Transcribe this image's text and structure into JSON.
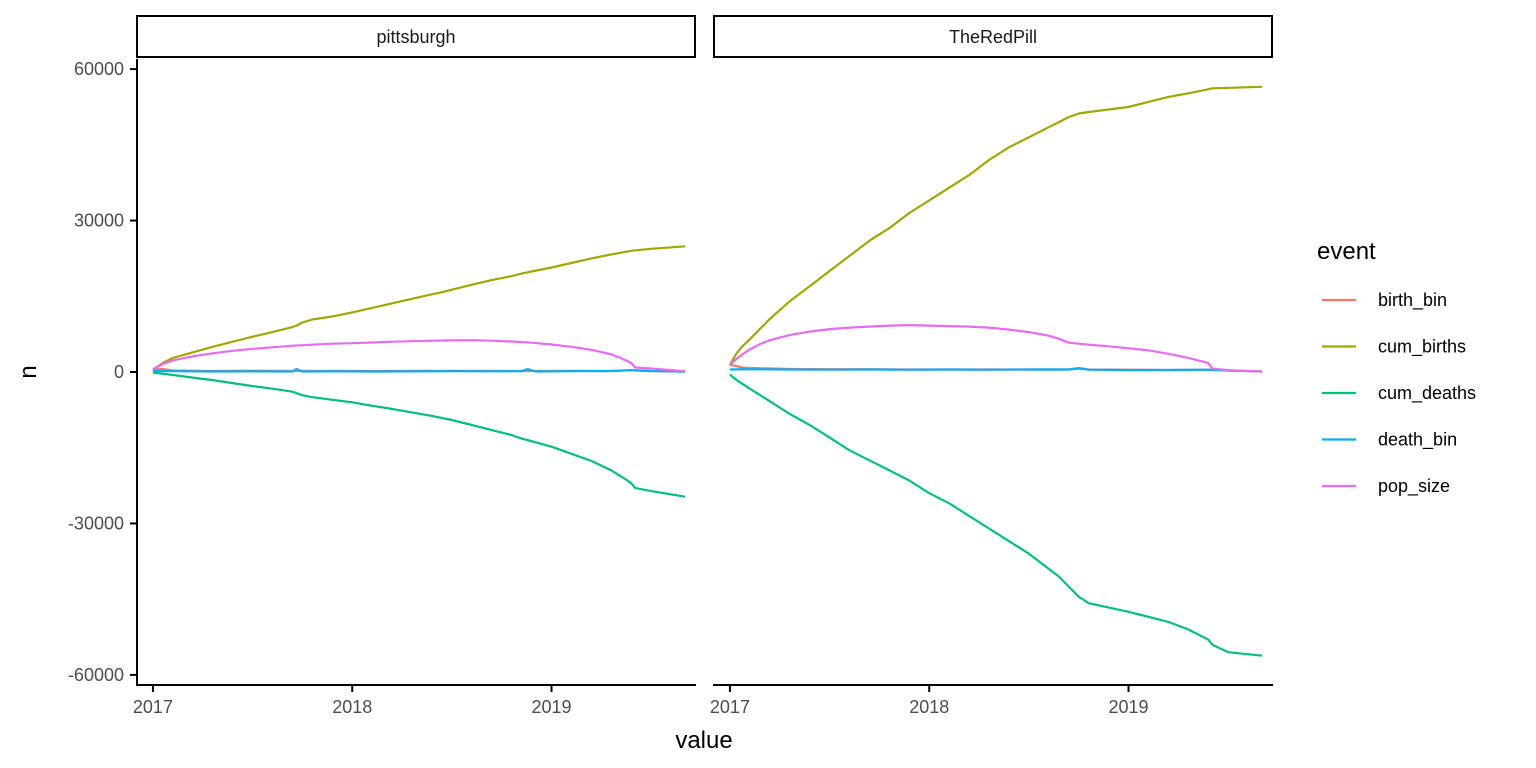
{
  "chart_data": {
    "type": "line",
    "xlabel": "value",
    "ylabel": "n",
    "ylim": [
      -62000,
      62000
    ],
    "y_ticks": [
      60000,
      30000,
      0,
      -30000,
      -60000
    ],
    "y_tick_labels": [
      "60000",
      "30000",
      "0",
      "-30000",
      "-60000"
    ],
    "xlim": [
      2016.92,
      2019.72
    ],
    "x_ticks": [
      2017,
      2018,
      2019
    ],
    "x_tick_labels": [
      "2017",
      "2018",
      "2019"
    ],
    "grid": false,
    "legend": {
      "title": "event",
      "position": "right",
      "entries": [
        "birth_bin",
        "cum_births",
        "cum_deaths",
        "death_bin",
        "pop_size"
      ]
    },
    "colors": {
      "birth_bin": "#F8766D",
      "cum_births": "#A3A500",
      "cum_deaths": "#00BF7D",
      "death_bin": "#00B0F6",
      "pop_size": "#E76BF3"
    },
    "panels": [
      {
        "title": "pittsburgh",
        "series": [
          {
            "name": "birth_bin",
            "x": [
              2017,
              2017.05,
              2017.1,
              2017.3,
              2017.5,
              2017.7,
              2017.9,
              2018.1,
              2018.3,
              2018.5,
              2018.7,
              2018.9,
              2019.1,
              2019.3,
              2019.4,
              2019.5,
              2019.67
            ],
            "y": [
              500,
              600,
              300,
              200,
              250,
              200,
              220,
              200,
              230,
              210,
              220,
              200,
              210,
              200,
              350,
              150,
              50
            ]
          },
          {
            "name": "cum_births",
            "x": [
              2017,
              2017.05,
              2017.1,
              2017.2,
              2017.3,
              2017.4,
              2017.5,
              2017.6,
              2017.7,
              2017.72,
              2017.75,
              2017.8,
              2017.9,
              2018,
              2018.1,
              2018.2,
              2018.3,
              2018.4,
              2018.45,
              2018.5,
              2018.6,
              2018.7,
              2018.8,
              2018.85,
              2018.9,
              2019,
              2019.1,
              2019.2,
              2019.3,
              2019.4,
              2019.5,
              2019.67
            ],
            "y": [
              500,
              1800,
              2800,
              3900,
              5000,
              6000,
              7000,
              7900,
              8900,
              9200,
              9800,
              10400,
              11000,
              11800,
              12700,
              13600,
              14500,
              15400,
              15800,
              16300,
              17300,
              18200,
              19000,
              19500,
              19900,
              20700,
              21600,
              22500,
              23300,
              24000,
              24400,
              24900
            ]
          },
          {
            "name": "cum_deaths",
            "x": [
              2017,
              2017.1,
              2017.2,
              2017.3,
              2017.4,
              2017.5,
              2017.6,
              2017.7,
              2017.72,
              2017.75,
              2017.8,
              2017.9,
              2018,
              2018.1,
              2018.2,
              2018.3,
              2018.4,
              2018.5,
              2018.6,
              2018.7,
              2018.8,
              2018.85,
              2018.9,
              2019,
              2019.1,
              2019.2,
              2019.3,
              2019.35,
              2019.4,
              2019.42,
              2019.5,
              2019.67
            ],
            "y": [
              -100,
              -600,
              -1100,
              -1600,
              -2200,
              -2800,
              -3300,
              -3900,
              -4200,
              -4600,
              -5000,
              -5500,
              -6000,
              -6700,
              -7300,
              -8000,
              -8700,
              -9500,
              -10500,
              -11500,
              -12500,
              -13200,
              -13700,
              -14800,
              -16200,
              -17600,
              -19500,
              -20700,
              -22000,
              -23000,
              -23600,
              -24700
            ]
          },
          {
            "name": "death_bin",
            "x": [
              2017,
              2017.1,
              2017.3,
              2017.5,
              2017.7,
              2017.72,
              2017.75,
              2017.9,
              2018.1,
              2018.3,
              2018.5,
              2018.7,
              2018.85,
              2018.88,
              2018.92,
              2019.1,
              2019.3,
              2019.4,
              2019.5,
              2019.67
            ],
            "y": [
              200,
              150,
              100,
              120,
              100,
              600,
              100,
              120,
              100,
              120,
              150,
              130,
              150,
              600,
              100,
              150,
              200,
              350,
              200,
              100
            ]
          },
          {
            "name": "pop_size",
            "x": [
              2017,
              2017.05,
              2017.1,
              2017.2,
              2017.3,
              2017.4,
              2017.5,
              2017.6,
              2017.7,
              2017.8,
              2017.9,
              2018,
              2018.1,
              2018.2,
              2018.3,
              2018.4,
              2018.5,
              2018.6,
              2018.7,
              2018.8,
              2018.9,
              2019,
              2019.1,
              2019.2,
              2019.3,
              2019.35,
              2019.4,
              2019.42,
              2019.5,
              2019.67
            ],
            "y": [
              500,
              1600,
              2300,
              3100,
              3700,
              4200,
              4600,
              4900,
              5200,
              5400,
              5600,
              5700,
              5850,
              6000,
              6100,
              6200,
              6250,
              6300,
              6200,
              6050,
              5800,
              5450,
              5000,
              4400,
              3500,
              2700,
              1800,
              900,
              700,
              150
            ]
          }
        ]
      },
      {
        "title": "TheRedPill",
        "series": [
          {
            "name": "birth_bin",
            "x": [
              2017,
              2017.03,
              2017.06,
              2017.1,
              2017.2,
              2017.3,
              2017.5,
              2017.7,
              2017.9,
              2018.1,
              2018.3,
              2018.5,
              2018.7,
              2018.75,
              2018.8,
              2019,
              2019.2,
              2019.4,
              2019.5,
              2019.67
            ],
            "y": [
              1400,
              1200,
              900,
              800,
              700,
              600,
              550,
              550,
              500,
              500,
              500,
              500,
              500,
              800,
              500,
              450,
              400,
              450,
              300,
              100
            ]
          },
          {
            "name": "cum_births",
            "x": [
              2017,
              2017.03,
              2017.06,
              2017.1,
              2017.15,
              2017.2,
              2017.3,
              2017.4,
              2017.5,
              2017.6,
              2017.7,
              2017.8,
              2017.9,
              2018,
              2018.1,
              2018.2,
              2018.3,
              2018.4,
              2018.5,
              2018.6,
              2018.65,
              2018.7,
              2018.75,
              2018.8,
              2019,
              2019.1,
              2019.2,
              2019.3,
              2019.4,
              2019.42,
              2019.67
            ],
            "y": [
              1400,
              3500,
              5000,
              6500,
              8500,
              10500,
              14000,
              17000,
              20000,
              23000,
              26000,
              28500,
              31500,
              34000,
              36500,
              39000,
              42000,
              44500,
              46500,
              48500,
              49500,
              50500,
              51200,
              51500,
              52500,
              53500,
              54500,
              55200,
              56000,
              56200,
              56500
            ]
          },
          {
            "name": "cum_deaths",
            "x": [
              2017,
              2017.03,
              2017.06,
              2017.1,
              2017.2,
              2017.3,
              2017.4,
              2017.5,
              2017.6,
              2017.7,
              2017.8,
              2017.9,
              2018,
              2018.1,
              2018.2,
              2018.3,
              2018.4,
              2018.5,
              2018.6,
              2018.65,
              2018.7,
              2018.75,
              2018.8,
              2019,
              2019.1,
              2019.2,
              2019.3,
              2019.35,
              2019.4,
              2019.42,
              2019.5,
              2019.67
            ],
            "y": [
              -500,
              -1500,
              -2300,
              -3300,
              -5800,
              -8300,
              -10500,
              -13000,
              -15500,
              -17500,
              -19500,
              -21500,
              -24000,
              -26000,
              -28500,
              -31000,
              -33500,
              -36000,
              -39000,
              -40500,
              -42500,
              -44500,
              -45800,
              -47500,
              -48500,
              -49500,
              -51000,
              -52000,
              -53000,
              -54000,
              -55500,
              -56200
            ]
          },
          {
            "name": "death_bin",
            "x": [
              2017,
              2017.1,
              2017.3,
              2017.5,
              2017.7,
              2017.9,
              2018.1,
              2018.3,
              2018.5,
              2018.7,
              2018.75,
              2018.8,
              2019,
              2019.2,
              2019.4,
              2019.5,
              2019.67
            ],
            "y": [
              500,
              550,
              500,
              450,
              500,
              450,
              500,
              450,
              500,
              500,
              700,
              450,
              400,
              400,
              450,
              300,
              100
            ]
          },
          {
            "name": "pop_size",
            "x": [
              2017,
              2017.03,
              2017.06,
              2017.1,
              2017.15,
              2017.2,
              2017.3,
              2017.4,
              2017.5,
              2017.6,
              2017.7,
              2017.8,
              2017.9,
              2018,
              2018.1,
              2018.2,
              2018.3,
              2018.4,
              2018.5,
              2018.6,
              2018.65,
              2018.7,
              2018.8,
              2018.9,
              2019,
              2019.1,
              2019.2,
              2019.3,
              2019.35,
              2019.4,
              2019.42,
              2019.5,
              2019.67
            ],
            "y": [
              1400,
              2500,
              3400,
              4500,
              5500,
              6300,
              7300,
              8000,
              8500,
              8800,
              9000,
              9200,
              9300,
              9200,
              9100,
              9000,
              8800,
              8400,
              7900,
              7200,
              6600,
              5800,
              5400,
              5100,
              4700,
              4300,
              3600,
              2800,
              2300,
              1800,
              700,
              350,
              100
            ]
          }
        ]
      }
    ]
  }
}
